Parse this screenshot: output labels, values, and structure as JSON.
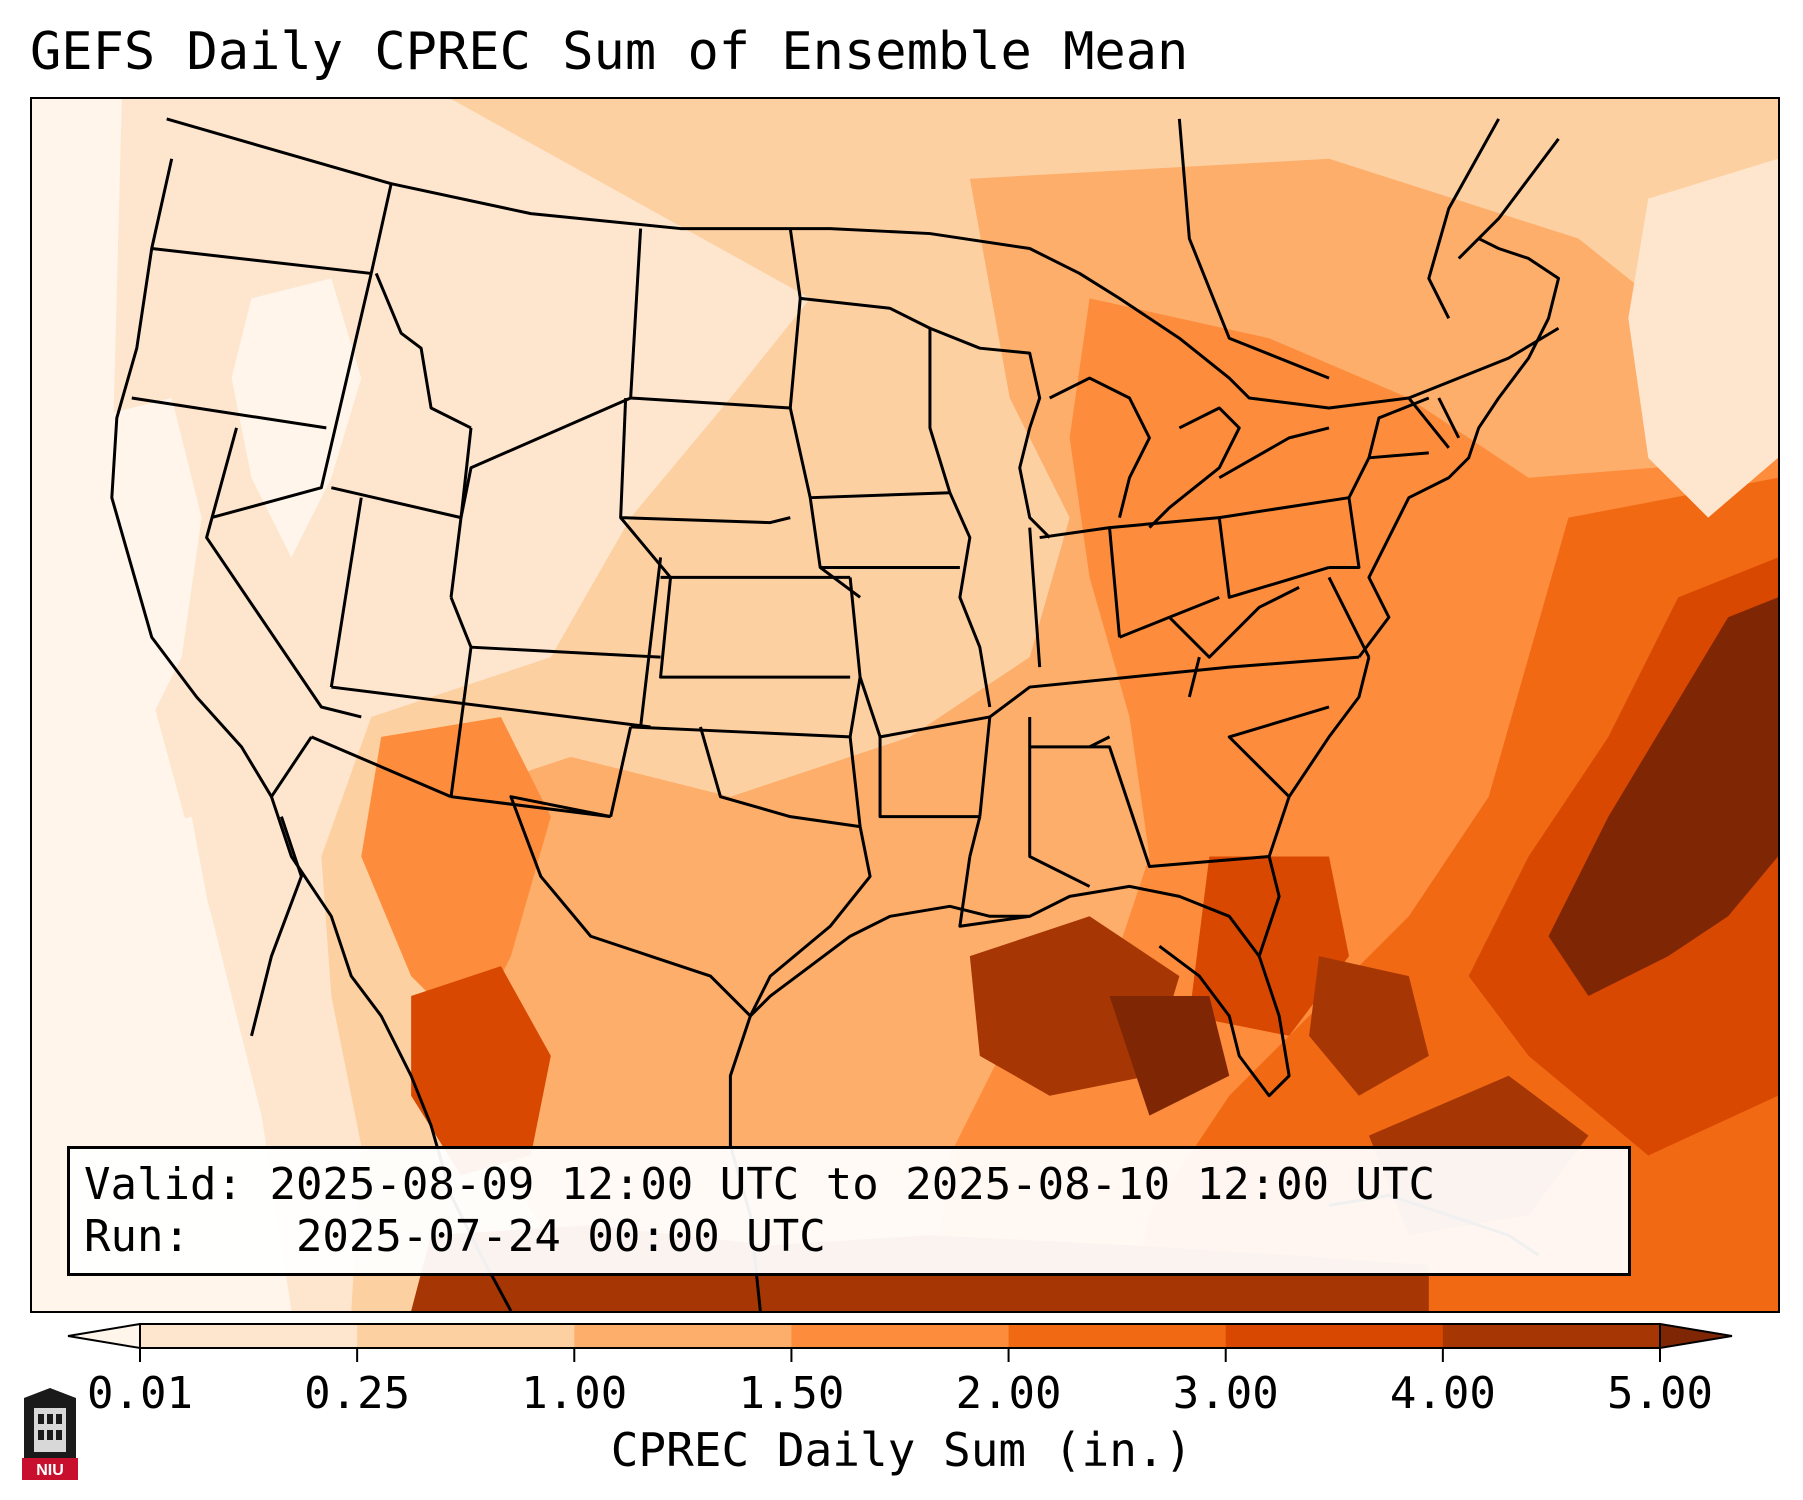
{
  "title": "GEFS Daily CPREC Sum of Ensemble Mean",
  "info": {
    "valid_label": "Valid:",
    "valid_value": "2025-08-09 12:00 UTC to 2025-08-10 12:00 UTC",
    "run_label": "Run:",
    "run_value": "2025-07-24 00:00 UTC"
  },
  "colorbar": {
    "label": "CPREC Daily Sum (in.)",
    "ticks": [
      "0.01",
      "0.25",
      "1.00",
      "1.50",
      "2.00",
      "3.00",
      "4.00",
      "5.00"
    ],
    "colors": [
      "#fff5eb",
      "#fee6ce",
      "#fdd0a2",
      "#fdae6b",
      "#fd8d3c",
      "#f16913",
      "#d94801",
      "#a63603",
      "#7f2704"
    ]
  },
  "logo": {
    "text": "NIU",
    "color": "#c8102e"
  }
}
